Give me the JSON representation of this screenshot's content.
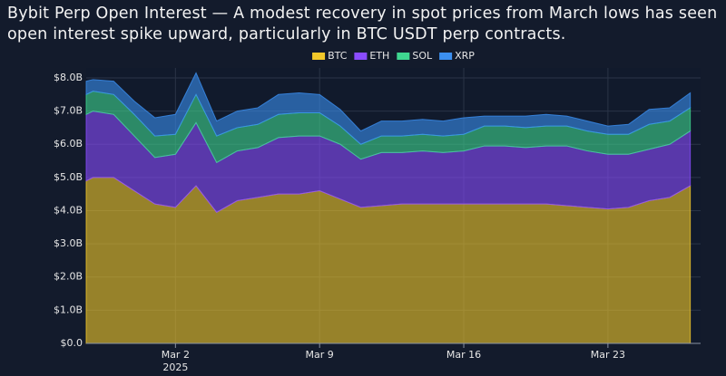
{
  "chart_data": {
    "type": "stacked-area",
    "title": "Bybit Perp Open Interest — A modest recovery in spot prices from March lows has seen open interest spike upward, particularly in BTC USDT perp contracts.",
    "x": [
      "2025-02-25T16:00",
      "2025-02-26",
      "2025-02-27",
      "2025-02-28",
      "2025-03-01",
      "2025-03-02",
      "2025-03-03",
      "2025-03-04",
      "2025-03-05",
      "2025-03-06",
      "2025-03-07",
      "2025-03-08",
      "2025-03-09",
      "2025-03-10",
      "2025-03-11",
      "2025-03-12",
      "2025-03-13",
      "2025-03-14",
      "2025-03-15",
      "2025-03-16",
      "2025-03-17",
      "2025-03-18",
      "2025-03-19",
      "2025-03-20",
      "2025-03-21",
      "2025-03-22",
      "2025-03-23",
      "2025-03-24",
      "2025-03-25",
      "2025-03-26",
      "2025-03-27"
    ],
    "series": [
      {
        "name": "BTC",
        "color": "#f2c82a",
        "values": [
          4.9,
          5.0,
          5.0,
          4.6,
          4.2,
          4.1,
          4.75,
          3.95,
          4.3,
          4.4,
          4.5,
          4.5,
          4.6,
          4.35,
          4.1,
          4.15,
          4.2,
          4.2,
          4.2,
          4.2,
          4.2,
          4.2,
          4.2,
          4.2,
          4.15,
          4.1,
          4.05,
          4.1,
          4.3,
          4.4,
          4.75
        ]
      },
      {
        "name": "ETH",
        "color": "#8a4cff",
        "values": [
          2.0,
          2.0,
          1.9,
          1.65,
          1.4,
          1.6,
          1.9,
          1.5,
          1.5,
          1.5,
          1.7,
          1.75,
          1.65,
          1.65,
          1.45,
          1.6,
          1.55,
          1.6,
          1.55,
          1.6,
          1.75,
          1.75,
          1.7,
          1.75,
          1.8,
          1.7,
          1.65,
          1.6,
          1.55,
          1.6,
          1.65
        ]
      },
      {
        "name": "SOL",
        "color": "#3fd690",
        "values": [
          0.6,
          0.6,
          0.6,
          0.65,
          0.65,
          0.6,
          0.85,
          0.8,
          0.7,
          0.7,
          0.7,
          0.7,
          0.7,
          0.55,
          0.45,
          0.5,
          0.5,
          0.5,
          0.5,
          0.5,
          0.6,
          0.6,
          0.6,
          0.6,
          0.6,
          0.6,
          0.6,
          0.6,
          0.75,
          0.7,
          0.7
        ]
      },
      {
        "name": "XRP",
        "color": "#3b8ff0",
        "values": [
          0.4,
          0.35,
          0.4,
          0.4,
          0.55,
          0.6,
          0.65,
          0.45,
          0.5,
          0.5,
          0.6,
          0.6,
          0.55,
          0.5,
          0.4,
          0.45,
          0.45,
          0.45,
          0.45,
          0.5,
          0.3,
          0.3,
          0.35,
          0.35,
          0.3,
          0.3,
          0.25,
          0.3,
          0.45,
          0.4,
          0.45
        ]
      }
    ],
    "xlim": [
      "2025-02-25T16:00",
      "2025-03-27T12:00"
    ],
    "xticks": [
      {
        "value": "2025-03-02",
        "label": "Mar 2"
      },
      {
        "value": "2025-03-09",
        "label": "Mar 9"
      },
      {
        "value": "2025-03-16",
        "label": "Mar 16"
      },
      {
        "value": "2025-03-23",
        "label": "Mar 23"
      }
    ],
    "x_year_label": "2025",
    "ylim": [
      0,
      8.3
    ],
    "yticks": [
      {
        "value": 0,
        "label": "$0.0"
      },
      {
        "value": 1,
        "label": "$1.0B"
      },
      {
        "value": 2,
        "label": "$2.0B"
      },
      {
        "value": 3,
        "label": "$3.0B"
      },
      {
        "value": 4,
        "label": "$4.0B"
      },
      {
        "value": 5,
        "label": "$5.0B"
      },
      {
        "value": 6,
        "label": "$6.0B"
      },
      {
        "value": 7,
        "label": "$7.0B"
      },
      {
        "value": 8,
        "label": "$8.0B"
      }
    ],
    "grid": true,
    "legend": "top"
  }
}
